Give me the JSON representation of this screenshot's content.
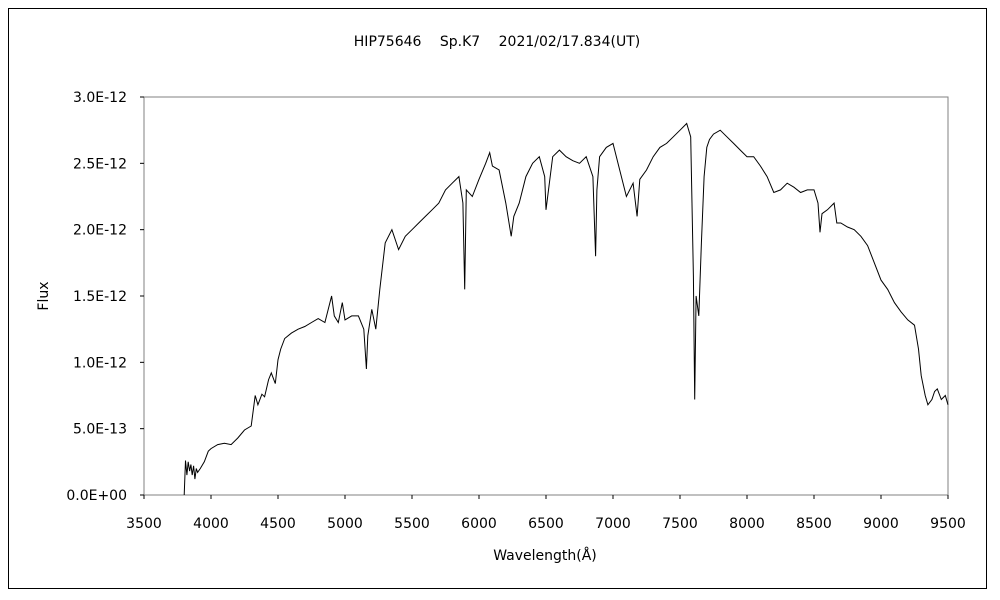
{
  "chart_data": {
    "type": "line",
    "title": "HIP75646　 Sp.K7　 2021/02/17.834(UT)",
    "xlabel": "Wavelength(Å)",
    "ylabel": "Flux",
    "xlim": [
      3500,
      9500
    ],
    "ylim": [
      0,
      3e-12
    ],
    "x_ticks": [
      3500,
      4000,
      4500,
      5000,
      5500,
      6000,
      6500,
      7000,
      7500,
      8000,
      8500,
      9000,
      9500
    ],
    "x_tick_labels": [
      "3500",
      "4000",
      "4500",
      "5000",
      "5500",
      "6000",
      "6500",
      "7000",
      "7500",
      "8000",
      "8500",
      "9000",
      "9500"
    ],
    "y_ticks": [
      0,
      5e-13,
      1e-12,
      1.5e-12,
      2e-12,
      2.5e-12,
      3e-12
    ],
    "y_tick_labels": [
      "0.0E+00",
      "5.0E-13",
      "1.0E-12",
      "1.5E-12",
      "2.0E-12",
      "2.5E-12",
      "3.0E-12"
    ],
    "grid": false,
    "series": [
      {
        "color": "#000000",
        "x": [
          3800,
          3810,
          3820,
          3830,
          3840,
          3850,
          3860,
          3870,
          3880,
          3890,
          3900,
          3920,
          3950,
          3980,
          4000,
          4050,
          4100,
          4150,
          4200,
          4250,
          4300,
          4330,
          4350,
          4380,
          4400,
          4430,
          4450,
          4480,
          4500,
          4520,
          4550,
          4600,
          4650,
          4700,
          4750,
          4800,
          4850,
          4900,
          4920,
          4950,
          4980,
          5000,
          5050,
          5100,
          5140,
          5160,
          5170,
          5200,
          5230,
          5260,
          5300,
          5350,
          5400,
          5450,
          5500,
          5550,
          5600,
          5650,
          5700,
          5750,
          5800,
          5850,
          5880,
          5893,
          5905,
          5950,
          6000,
          6050,
          6080,
          6100,
          6150,
          6200,
          6240,
          6260,
          6300,
          6350,
          6400,
          6450,
          6490,
          6500,
          6550,
          6600,
          6650,
          6700,
          6750,
          6800,
          6850,
          6870,
          6880,
          6900,
          6950,
          7000,
          7050,
          7100,
          7150,
          7180,
          7200,
          7250,
          7300,
          7350,
          7400,
          7450,
          7500,
          7550,
          7580,
          7600,
          7610,
          7620,
          7640,
          7660,
          7680,
          7700,
          7720,
          7750,
          7800,
          7850,
          7900,
          7950,
          8000,
          8050,
          8100,
          8150,
          8200,
          8250,
          8300,
          8350,
          8400,
          8450,
          8500,
          8530,
          8545,
          8560,
          8600,
          8650,
          8670,
          8700,
          8750,
          8800,
          8850,
          8900,
          8950,
          9000,
          9050,
          9100,
          9150,
          9200,
          9250,
          9280,
          9300,
          9330,
          9350,
          9380,
          9400,
          9420,
          9450,
          9480,
          9500
        ],
        "y": [
          0,
          2.6e-13,
          1.5e-13,
          2.5e-13,
          1.8e-13,
          2.3e-13,
          1.5e-13,
          2.2e-13,
          1.2e-13,
          2e-13,
          1.7e-13,
          2e-13,
          2.5e-13,
          3.3e-13,
          3.5e-13,
          3.8e-13,
          3.9e-13,
          3.8e-13,
          4.3e-13,
          4.9e-13,
          5.2e-13,
          7.5e-13,
          6.8e-13,
          7.6e-13,
          7.4e-13,
          8.7e-13,
          9.2e-13,
          8.4e-13,
          1.02e-12,
          1.1e-12,
          1.18e-12,
          1.22e-12,
          1.25e-12,
          1.27e-12,
          1.3e-12,
          1.33e-12,
          1.3e-12,
          1.5e-12,
          1.35e-12,
          1.3e-12,
          1.45e-12,
          1.32e-12,
          1.35e-12,
          1.35e-12,
          1.25e-12,
          9.5e-13,
          1.2e-12,
          1.4e-12,
          1.25e-12,
          1.55e-12,
          1.9e-12,
          2e-12,
          1.85e-12,
          1.95e-12,
          2e-12,
          2.05e-12,
          2.1e-12,
          2.15e-12,
          2.2e-12,
          2.3e-12,
          2.35e-12,
          2.4e-12,
          2.2e-12,
          1.55e-12,
          2.3e-12,
          2.25e-12,
          2.38e-12,
          2.5e-12,
          2.58e-12,
          2.48e-12,
          2.45e-12,
          2.2e-12,
          1.95e-12,
          2.1e-12,
          2.2e-12,
          2.4e-12,
          2.5e-12,
          2.55e-12,
          2.4e-12,
          2.15e-12,
          2.55e-12,
          2.6e-12,
          2.55e-12,
          2.52e-12,
          2.5e-12,
          2.55e-12,
          2.4e-12,
          1.8e-12,
          2.3e-12,
          2.55e-12,
          2.62e-12,
          2.65e-12,
          2.45e-12,
          2.25e-12,
          2.35e-12,
          2.1e-12,
          2.38e-12,
          2.45e-12,
          2.55e-12,
          2.62e-12,
          2.65e-12,
          2.7e-12,
          2.75e-12,
          2.8e-12,
          2.7e-12,
          1.65e-12,
          7.2e-13,
          1.5e-12,
          1.35e-12,
          1.9e-12,
          2.4e-12,
          2.62e-12,
          2.68e-12,
          2.72e-12,
          2.75e-12,
          2.7e-12,
          2.65e-12,
          2.6e-12,
          2.55e-12,
          2.55e-12,
          2.48e-12,
          2.4e-12,
          2.28e-12,
          2.3e-12,
          2.35e-12,
          2.32e-12,
          2.28e-12,
          2.3e-12,
          2.3e-12,
          2.2e-12,
          1.98e-12,
          2.12e-12,
          2.15e-12,
          2.2e-12,
          2.05e-12,
          2.05e-12,
          2.02e-12,
          2e-12,
          1.95e-12,
          1.88e-12,
          1.75e-12,
          1.62e-12,
          1.55e-12,
          1.45e-12,
          1.38e-12,
          1.32e-12,
          1.28e-12,
          1.1e-12,
          9e-13,
          7.5e-13,
          6.8e-13,
          7.2e-13,
          7.8e-13,
          8e-13,
          7.2e-13,
          7.5e-13,
          6.8e-13
        ]
      }
    ]
  }
}
